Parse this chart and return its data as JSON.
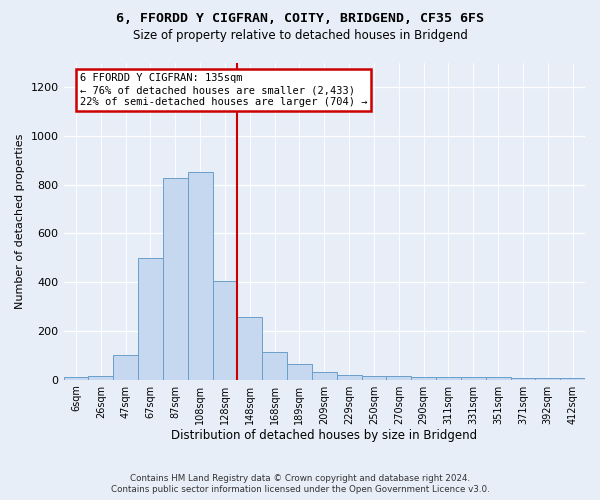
{
  "title": "6, FFORDD Y CIGFRAN, COITY, BRIDGEND, CF35 6FS",
  "subtitle": "Size of property relative to detached houses in Bridgend",
  "xlabel": "Distribution of detached houses by size in Bridgend",
  "ylabel": "Number of detached properties",
  "bin_labels": [
    "6sqm",
    "26sqm",
    "47sqm",
    "67sqm",
    "87sqm",
    "108sqm",
    "128sqm",
    "148sqm",
    "168sqm",
    "189sqm",
    "209sqm",
    "229sqm",
    "250sqm",
    "270sqm",
    "290sqm",
    "311sqm",
    "331sqm",
    "351sqm",
    "371sqm",
    "392sqm",
    "412sqm"
  ],
  "bar_heights": [
    10,
    15,
    100,
    500,
    825,
    850,
    405,
    255,
    115,
    65,
    33,
    20,
    15,
    15,
    10,
    10,
    10,
    10,
    5,
    5,
    5
  ],
  "bar_color": "#c5d8f0",
  "bar_edge_color": "#6a9fcb",
  "vline_x_idx": 6.5,
  "annotation_line1": "6 FFORDD Y CIGFRAN: 135sqm",
  "annotation_line2": "← 76% of detached houses are smaller (2,433)",
  "annotation_line3": "22% of semi-detached houses are larger (704) →",
  "annotation_box_facecolor": "#ffffff",
  "annotation_box_edgecolor": "#cc0000",
  "ylim": [
    0,
    1300
  ],
  "yticks": [
    0,
    200,
    400,
    600,
    800,
    1000,
    1200
  ],
  "footer_line1": "Contains HM Land Registry data © Crown copyright and database right 2024.",
  "footer_line2": "Contains public sector information licensed under the Open Government Licence v3.0.",
  "bg_color": "#e8eef8"
}
